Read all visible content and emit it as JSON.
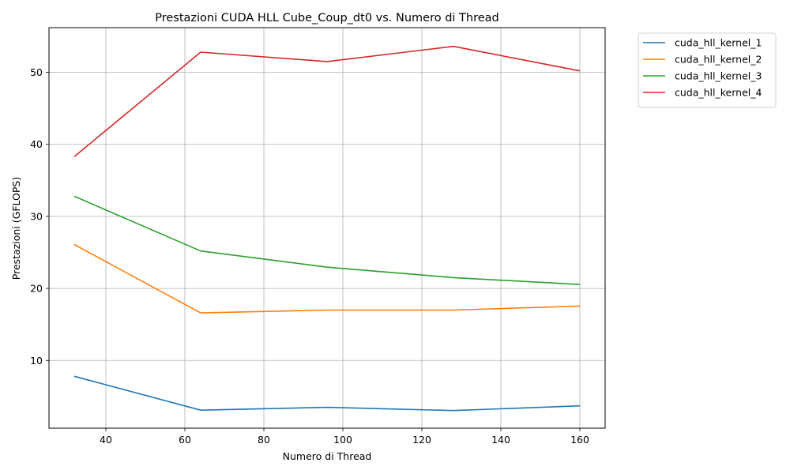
{
  "chart_data": {
    "type": "line",
    "title": "Prestazioni CUDA HLL Cube_Coup_dt0 vs. Numero di Thread",
    "xlabel": "Numero di Thread",
    "ylabel": "Prestazioni (GFLOPS)",
    "x": [
      32,
      64,
      96,
      128,
      160
    ],
    "xlim": [
      25.6,
      166.4
    ],
    "ylim": [
      0.6,
      56.2
    ],
    "xticks": [
      40,
      60,
      80,
      100,
      120,
      140,
      160
    ],
    "yticks": [
      10,
      20,
      30,
      40,
      50
    ],
    "grid": true,
    "legend_position": "outside-upper-right",
    "series": [
      {
        "name": "cuda_hll_kernel_1",
        "color": "#1f77b4",
        "values": [
          7.8,
          3.1,
          3.5,
          3.05,
          3.7
        ]
      },
      {
        "name": "cuda_hll_kernel_2",
        "color": "#ff7f0e",
        "values": [
          26.1,
          16.6,
          17.0,
          17.0,
          17.55
        ]
      },
      {
        "name": "cuda_hll_kernel_3",
        "color": "#2ca02c",
        "values": [
          32.8,
          25.2,
          22.95,
          21.5,
          20.55
        ]
      },
      {
        "name": "cuda_hll_kernel_4",
        "color": "#d62728",
        "values": [
          38.3,
          52.8,
          51.5,
          53.6,
          50.2
        ]
      }
    ]
  }
}
